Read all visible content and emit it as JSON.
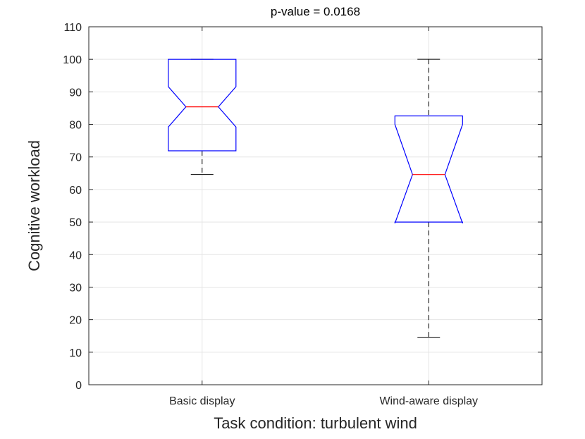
{
  "chart_data": {
    "type": "boxplot",
    "title": "p-value = 0.0168",
    "xlabel": "Task condition: turbulent wind",
    "ylabel": "Cognitive workload",
    "ylim": [
      0,
      110
    ],
    "yticks": [
      0,
      10,
      20,
      30,
      40,
      50,
      60,
      70,
      80,
      90,
      100,
      110
    ],
    "grid": true,
    "notched": true,
    "categories": [
      "Basic display",
      "Wind-aware display"
    ],
    "boxes": [
      {
        "name": "Basic display",
        "whisker_low": 64.6,
        "q1": 71.9,
        "median": 85.4,
        "q3": 100,
        "whisker_high": 100,
        "notch_low": 79.2,
        "notch_high": 91.6
      },
      {
        "name": "Wind-aware display",
        "whisker_low": 14.6,
        "q1": 50.0,
        "median": 64.6,
        "q3": 82.6,
        "whisker_high": 100,
        "notch_low": 49.6,
        "notch_high": 80.0
      }
    ],
    "colors": {
      "box": "#0000ff",
      "median": "#ff0000",
      "whisker": "#000000",
      "grid": "#e5e5e5",
      "axis": "#262626"
    }
  }
}
